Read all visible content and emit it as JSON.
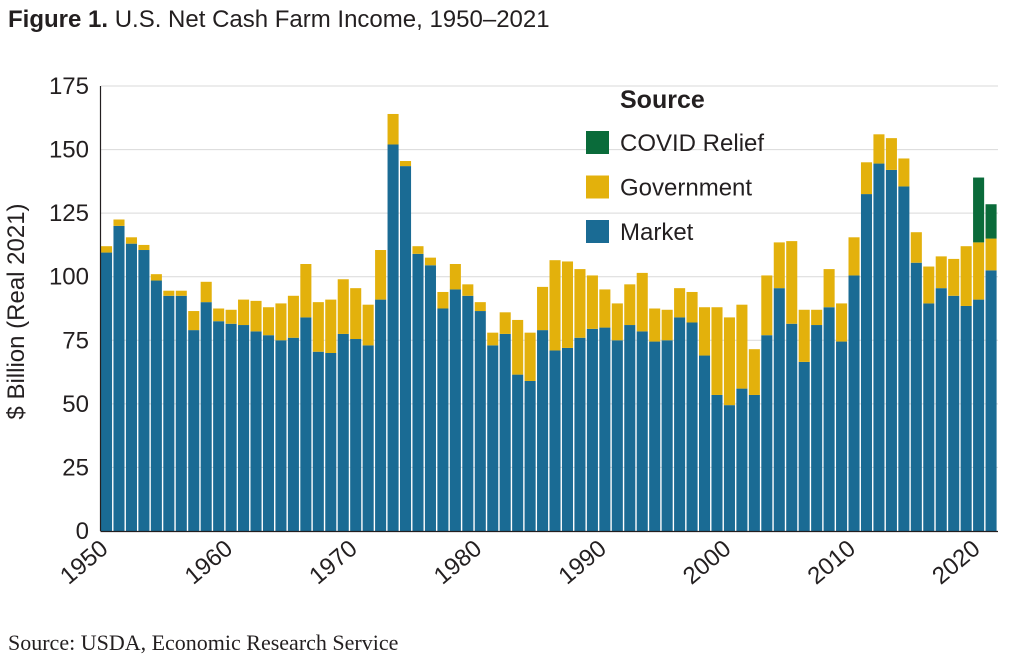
{
  "figure": {
    "label": "Figure 1.",
    "title": "U.S. Net Cash Farm Income, 1950–2021",
    "source": "Source: USDA, Economic Research Service"
  },
  "chart_data": {
    "type": "bar",
    "stacked": true,
    "title": "U.S. Net Cash Farm Income, 1950–2021",
    "xlabel": "",
    "ylabel": "$ Billion (Real 2021)",
    "ylim": [
      0,
      175
    ],
    "yticks": [
      0,
      25,
      50,
      75,
      100,
      125,
      150,
      175
    ],
    "xtick_labels": [
      "1950",
      "1960",
      "1970",
      "1980",
      "1990",
      "2000",
      "2010",
      "2020"
    ],
    "grid": true,
    "legend_title": "Source",
    "legend_position": "top-right",
    "legend_order": [
      "COVID Relief",
      "Government",
      "Market"
    ],
    "categories": [
      1950,
      1951,
      1952,
      1953,
      1954,
      1955,
      1956,
      1957,
      1958,
      1959,
      1960,
      1961,
      1962,
      1963,
      1964,
      1965,
      1966,
      1967,
      1968,
      1969,
      1970,
      1971,
      1972,
      1973,
      1974,
      1975,
      1976,
      1977,
      1978,
      1979,
      1980,
      1981,
      1982,
      1983,
      1984,
      1985,
      1986,
      1987,
      1988,
      1989,
      1990,
      1991,
      1992,
      1993,
      1994,
      1995,
      1996,
      1997,
      1998,
      1999,
      2000,
      2001,
      2002,
      2003,
      2004,
      2005,
      2006,
      2007,
      2008,
      2009,
      2010,
      2011,
      2012,
      2013,
      2014,
      2015,
      2016,
      2017,
      2018,
      2019,
      2020,
      2021
    ],
    "series": [
      {
        "name": "Market",
        "color": "#1a6b94",
        "values": [
          109.5,
          120,
          113,
          110.5,
          98.5,
          92.5,
          92.5,
          79,
          90,
          82.5,
          81.5,
          81,
          78.5,
          77,
          75,
          76,
          84,
          70.5,
          70,
          77.5,
          75.5,
          73,
          91,
          152,
          143.5,
          109,
          104.5,
          87.5,
          95,
          92.5,
          86.5,
          73,
          77.5,
          61.5,
          59,
          79,
          71,
          72,
          76,
          79.5,
          80,
          75,
          81,
          78.5,
          74.5,
          75,
          84,
          82,
          69,
          53.5,
          49.5,
          56,
          53.5,
          77,
          95.5,
          81.5,
          66.5,
          81,
          88,
          74.5,
          100.5,
          132.5,
          144.5,
          142,
          135.5,
          105.5,
          89.5,
          95.5,
          92.5,
          88.5,
          91,
          102.5
        ]
      },
      {
        "name": "Government",
        "color": "#e3b10c",
        "values": [
          2.5,
          2.5,
          2.5,
          2,
          2.5,
          2,
          2,
          7.5,
          8,
          5,
          5.5,
          10,
          12,
          11,
          14.5,
          16.5,
          21,
          19.5,
          21,
          21.5,
          20,
          16,
          19.5,
          12,
          2,
          3,
          3,
          6.5,
          10,
          4.5,
          3.5,
          5,
          8.5,
          21.5,
          19,
          17,
          35.5,
          34,
          27,
          21,
          15,
          14.5,
          16,
          23,
          13,
          12,
          11.5,
          12,
          19,
          34.5,
          34.5,
          33,
          18,
          23.5,
          18,
          32.5,
          20.5,
          6,
          15,
          15,
          15,
          12.5,
          11.5,
          12.5,
          11,
          12,
          14.5,
          12.5,
          14.5,
          23.5,
          22.5,
          12.5
        ]
      },
      {
        "name": "COVID Relief",
        "color": "#0a6b3a",
        "values": [
          0,
          0,
          0,
          0,
          0,
          0,
          0,
          0,
          0,
          0,
          0,
          0,
          0,
          0,
          0,
          0,
          0,
          0,
          0,
          0,
          0,
          0,
          0,
          0,
          0,
          0,
          0,
          0,
          0,
          0,
          0,
          0,
          0,
          0,
          0,
          0,
          0,
          0,
          0,
          0,
          0,
          0,
          0,
          0,
          0,
          0,
          0,
          0,
          0,
          0,
          0,
          0,
          0,
          0,
          0,
          0,
          0,
          0,
          0,
          0,
          0,
          0,
          0,
          0,
          0,
          0,
          0,
          0,
          0,
          0,
          25.5,
          13.5
        ]
      }
    ]
  }
}
